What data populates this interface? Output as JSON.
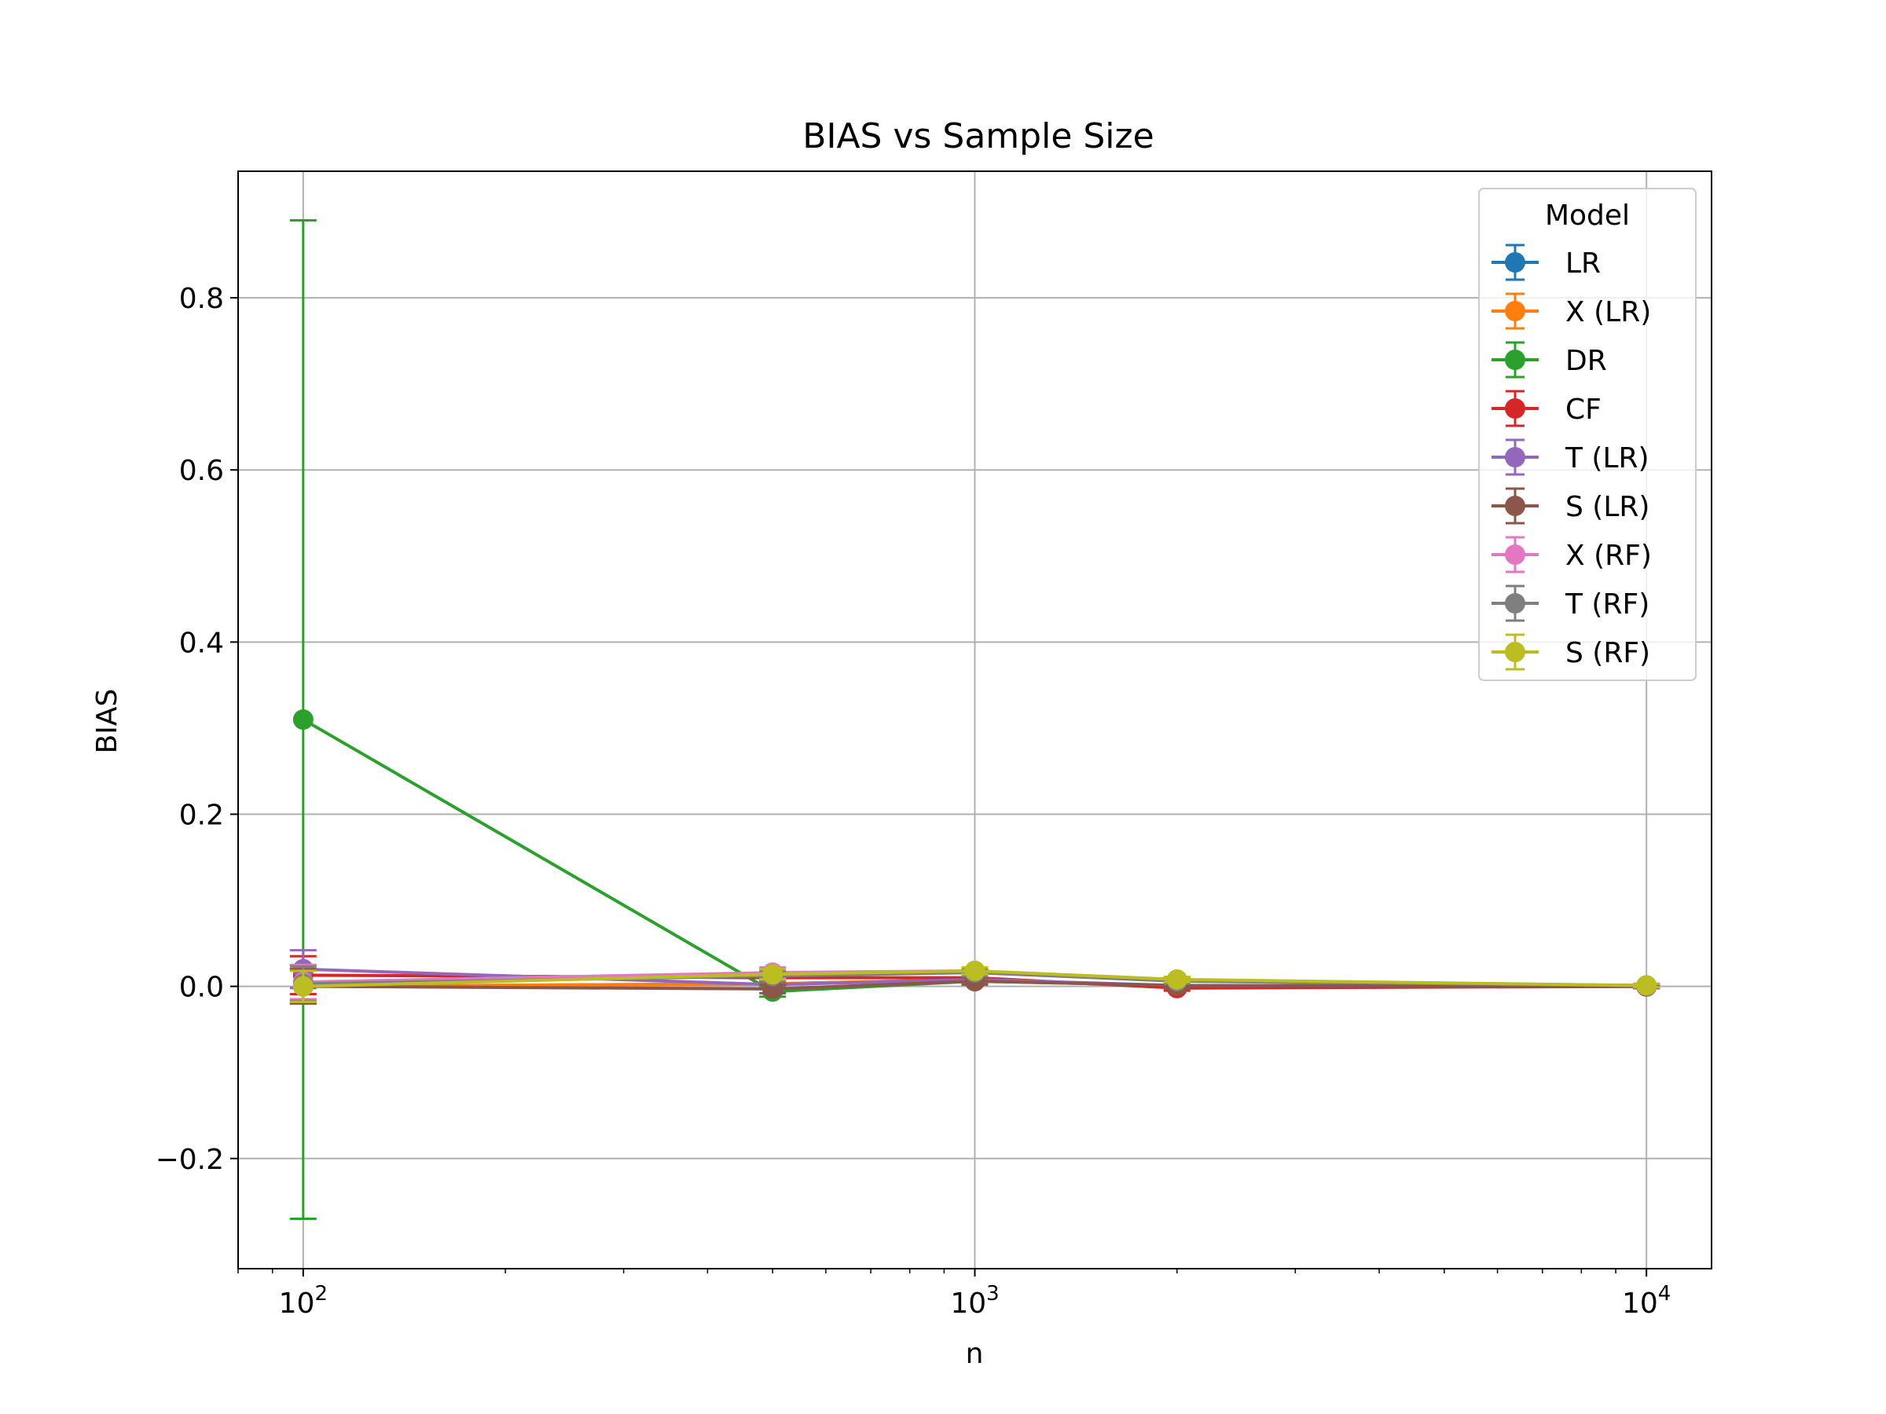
{
  "chart_data": {
    "type": "line",
    "title": "BIAS vs Sample Size",
    "xlabel": "n",
    "ylabel": "BIAS",
    "x_scale": "log",
    "x": [
      100,
      500,
      1000,
      2000,
      10000
    ],
    "xlim": [
      80,
      12500
    ],
    "ylim": [
      -0.328,
      0.947
    ],
    "xticks": [
      {
        "value": 100,
        "base": "10",
        "exp": "2"
      },
      {
        "value": 1000,
        "base": "10",
        "exp": "3"
      },
      {
        "value": 10000,
        "base": "10",
        "exp": "4"
      }
    ],
    "yticks": [
      {
        "value": -0.2,
        "label": "−0.2"
      },
      {
        "value": 0.0,
        "label": "0.0"
      },
      {
        "value": 0.2,
        "label": "0.2"
      },
      {
        "value": 0.4,
        "label": "0.4"
      },
      {
        "value": 0.6,
        "label": "0.6"
      },
      {
        "value": 0.8,
        "label": "0.8"
      }
    ],
    "grid": true,
    "legend": {
      "title": "Model",
      "placement": "top-right"
    },
    "series": [
      {
        "name": "LR",
        "color": "#1f77b4",
        "values": [
          0.0,
          0.003,
          0.008,
          0.0,
          0.0
        ],
        "errors": [
          0.02,
          0.005,
          0.004,
          0.003,
          0.002
        ]
      },
      {
        "name": "X (LR)",
        "color": "#ff7f0e",
        "values": [
          0.0,
          0.003,
          0.008,
          0.0,
          0.0
        ],
        "errors": [
          0.02,
          0.005,
          0.004,
          0.003,
          0.002
        ]
      },
      {
        "name": "DR",
        "color": "#2ca02c",
        "values": [
          0.31,
          -0.006,
          0.006,
          0.001,
          0.0
        ],
        "errors": [
          0.58,
          0.006,
          0.004,
          0.003,
          0.002
        ]
      },
      {
        "name": "CF",
        "color": "#d62728",
        "values": [
          0.013,
          0.01,
          0.01,
          -0.002,
          0.0
        ],
        "errors": [
          0.022,
          0.005,
          0.004,
          0.003,
          0.002
        ]
      },
      {
        "name": "T (LR)",
        "color": "#9467bd",
        "values": [
          0.02,
          0.002,
          0.008,
          0.001,
          0.0
        ],
        "errors": [
          0.022,
          0.005,
          0.004,
          0.003,
          0.002
        ]
      },
      {
        "name": "S (LR)",
        "color": "#8c564b",
        "values": [
          0.0,
          -0.003,
          0.006,
          0.001,
          0.0
        ],
        "errors": [
          0.02,
          0.005,
          0.004,
          0.003,
          0.002
        ]
      },
      {
        "name": "X (RF)",
        "color": "#e377c2",
        "values": [
          0.005,
          0.016,
          0.018,
          0.007,
          0.001
        ],
        "errors": [
          0.02,
          0.006,
          0.004,
          0.003,
          0.002
        ]
      },
      {
        "name": "T (RF)",
        "color": "#7f7f7f",
        "values": [
          0.003,
          0.012,
          0.016,
          0.006,
          0.001
        ],
        "errors": [
          0.02,
          0.006,
          0.004,
          0.003,
          0.002
        ]
      },
      {
        "name": "S (RF)",
        "color": "#bcbd22",
        "values": [
          0.0,
          0.014,
          0.018,
          0.008,
          0.001
        ],
        "errors": [
          0.018,
          0.006,
          0.004,
          0.003,
          0.002
        ]
      }
    ]
  }
}
